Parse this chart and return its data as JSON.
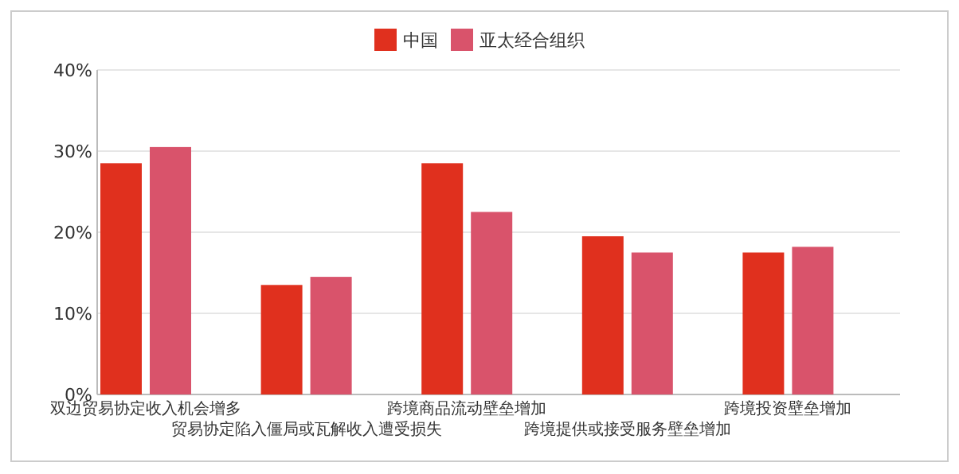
{
  "chart_data": {
    "type": "bar",
    "categories": [
      "双边贸易协定收入机会增多",
      "贸易协定陷入僵局或瓦解收入遭受损失",
      "跨境商品流动壁垒增加",
      "跨境提供或接受服务壁垒增加",
      "跨境投资壁垒增加"
    ],
    "series": [
      {
        "name": "中国",
        "color": "#e0301e",
        "values": [
          28.5,
          13.5,
          28.5,
          19.5,
          17.5
        ]
      },
      {
        "name": "亚太经合组织",
        "color": "#d9536b",
        "values": [
          30.5,
          14.5,
          22.5,
          17.5,
          18.2
        ]
      }
    ],
    "ylim": [
      0,
      40
    ],
    "yticks": [
      {
        "value": 0,
        "label": "0%"
      },
      {
        "value": 10,
        "label": "10%"
      },
      {
        "value": 20,
        "label": "20%"
      },
      {
        "value": 30,
        "label": "30%"
      },
      {
        "value": 40,
        "label": "40%"
      }
    ],
    "grid": "y",
    "legend": "top"
  }
}
